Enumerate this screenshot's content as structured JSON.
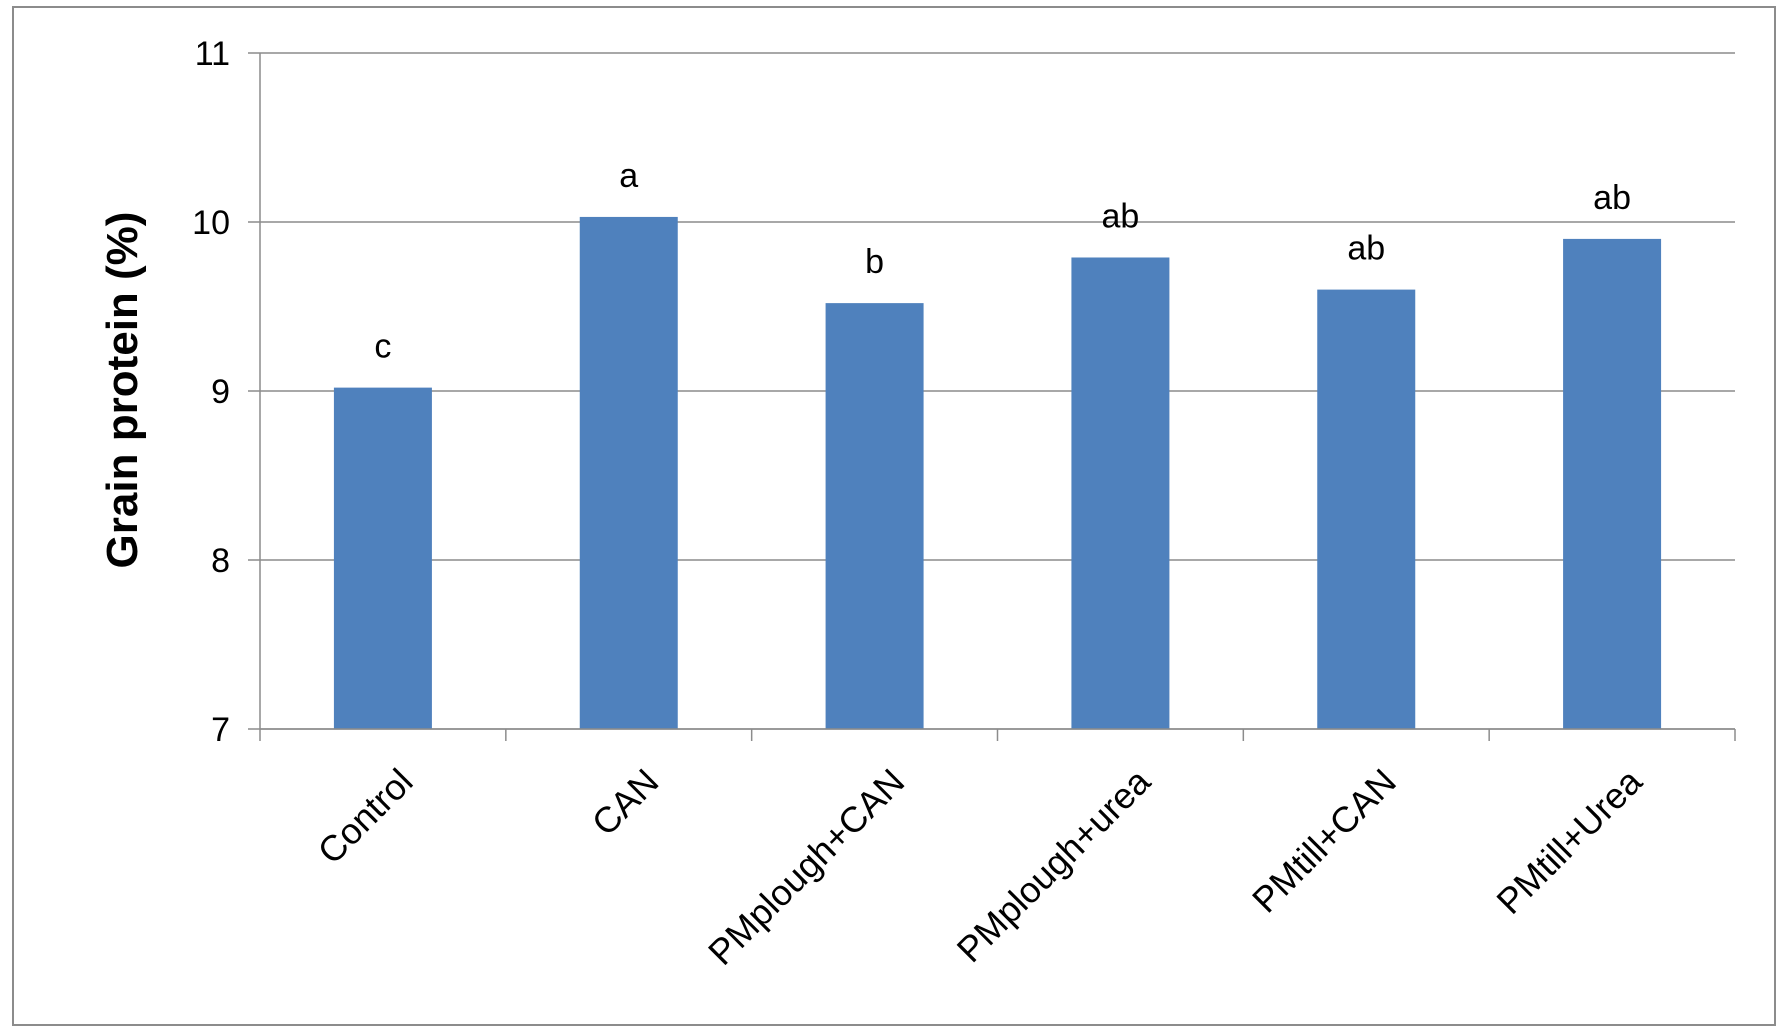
{
  "chart_data": {
    "type": "bar",
    "categories": [
      "Control",
      "CAN",
      "PMplough+CAN",
      "PMplough+urea",
      "PMtill+CAN",
      "PMtill+Urea"
    ],
    "values": [
      9.02,
      10.03,
      9.52,
      9.79,
      9.6,
      9.9
    ],
    "significance_labels": [
      "c",
      "a",
      "b",
      "ab",
      "ab",
      "ab"
    ],
    "ylabel": "Grain protein (%)",
    "xlabel": "",
    "ylim": [
      7,
      11
    ],
    "yticks": [
      7,
      8,
      9,
      10,
      11
    ],
    "grid": true,
    "legend": "none",
    "bar_color": "#4f81bd",
    "grid_color": "#8c8c8c"
  }
}
